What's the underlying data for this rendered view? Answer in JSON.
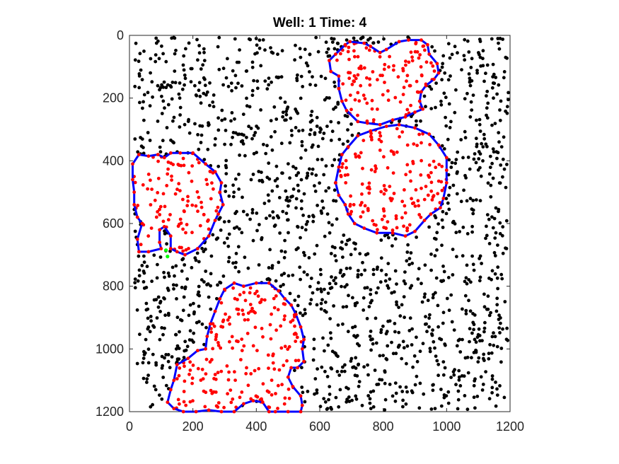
{
  "chart_data": {
    "type": "scatter",
    "title": "Well: 1 Time: 4",
    "xlabel": "",
    "ylabel": "",
    "xlim": [
      0,
      1200
    ],
    "ylim": [
      0,
      1200
    ],
    "y_reversed": true,
    "xticks": [
      0,
      200,
      400,
      600,
      800,
      1000,
      1200
    ],
    "yticks": [
      0,
      200,
      400,
      600,
      800,
      1000,
      1200
    ],
    "xtick_labels": [
      "0",
      "200",
      "400",
      "600",
      "800",
      "1000",
      "1200"
    ],
    "ytick_labels": [
      "0",
      "200",
      "400",
      "600",
      "800",
      "1000",
      "1200"
    ],
    "grid": false,
    "colors": {
      "background_cells": "#000000",
      "colony_cells": "#ff0000",
      "boundary": "#0000ff",
      "vertex": "#ff0000",
      "highlight": "#00ff00",
      "axes": "#262626"
    },
    "background_density": 1500,
    "colonies": [
      {
        "boundary": [
          [
            695,
            20
          ],
          [
            740,
            25
          ],
          [
            760,
            35
          ],
          [
            790,
            55
          ],
          [
            810,
            45
          ],
          [
            850,
            20
          ],
          [
            880,
            15
          ],
          [
            920,
            15
          ],
          [
            940,
            30
          ],
          [
            945,
            60
          ],
          [
            970,
            90
          ],
          [
            975,
            120
          ],
          [
            960,
            140
          ],
          [
            935,
            160
          ],
          [
            920,
            180
          ],
          [
            915,
            210
          ],
          [
            925,
            235
          ],
          [
            900,
            245
          ],
          [
            870,
            260
          ],
          [
            830,
            270
          ],
          [
            790,
            285
          ],
          [
            750,
            280
          ],
          [
            720,
            275
          ],
          [
            685,
            240
          ],
          [
            670,
            210
          ],
          [
            660,
            170
          ],
          [
            660,
            130
          ],
          [
            635,
            115
          ],
          [
            630,
            80
          ],
          [
            650,
            60
          ],
          [
            680,
            30
          ]
        ],
        "fill_count": 110
      },
      {
        "boundary": [
          [
            760,
            305
          ],
          [
            810,
            290
          ],
          [
            850,
            285
          ],
          [
            900,
            295
          ],
          [
            945,
            315
          ],
          [
            975,
            350
          ],
          [
            1000,
            390
          ],
          [
            1000,
            430
          ],
          [
            1000,
            470
          ],
          [
            990,
            520
          ],
          [
            980,
            550
          ],
          [
            950,
            570
          ],
          [
            930,
            590
          ],
          [
            900,
            625
          ],
          [
            870,
            640
          ],
          [
            830,
            630
          ],
          [
            780,
            630
          ],
          [
            740,
            615
          ],
          [
            710,
            600
          ],
          [
            690,
            570
          ],
          [
            680,
            540
          ],
          [
            660,
            510
          ],
          [
            650,
            470
          ],
          [
            660,
            420
          ],
          [
            670,
            380
          ],
          [
            690,
            355
          ],
          [
            720,
            320
          ]
        ],
        "fill_count": 150
      },
      {
        "boundary": [
          [
            10,
            410
          ],
          [
            30,
            380
          ],
          [
            60,
            385
          ],
          [
            90,
            380
          ],
          [
            110,
            390
          ],
          [
            130,
            375
          ],
          [
            160,
            375
          ],
          [
            200,
            375
          ],
          [
            240,
            410
          ],
          [
            270,
            435
          ],
          [
            290,
            470
          ],
          [
            285,
            500
          ],
          [
            295,
            540
          ],
          [
            280,
            570
          ],
          [
            270,
            590
          ],
          [
            250,
            640
          ],
          [
            215,
            680
          ],
          [
            175,
            700
          ],
          [
            150,
            690
          ],
          [
            130,
            680
          ],
          [
            130,
            640
          ],
          [
            110,
            610
          ],
          [
            95,
            620
          ],
          [
            95,
            660
          ],
          [
            100,
            680
          ],
          [
            60,
            690
          ],
          [
            30,
            690
          ],
          [
            25,
            650
          ],
          [
            40,
            600
          ],
          [
            25,
            580
          ],
          [
            15,
            540
          ],
          [
            15,
            500
          ],
          [
            10,
            460
          ]
        ],
        "fill_count": 100
      },
      {
        "boundary": [
          [
            300,
            810
          ],
          [
            330,
            790
          ],
          [
            360,
            800
          ],
          [
            400,
            790
          ],
          [
            440,
            790
          ],
          [
            470,
            815
          ],
          [
            490,
            840
          ],
          [
            510,
            860
          ],
          [
            525,
            890
          ],
          [
            540,
            930
          ],
          [
            550,
            970
          ],
          [
            545,
            1000
          ],
          [
            550,
            1040
          ],
          [
            530,
            1060
          ],
          [
            510,
            1060
          ],
          [
            500,
            1090
          ],
          [
            515,
            1120
          ],
          [
            540,
            1150
          ],
          [
            545,
            1180
          ],
          [
            540,
            1200
          ],
          [
            500,
            1200
          ],
          [
            460,
            1200
          ],
          [
            440,
            1200
          ],
          [
            420,
            1170
          ],
          [
            390,
            1165
          ],
          [
            360,
            1175
          ],
          [
            330,
            1200
          ],
          [
            290,
            1200
          ],
          [
            250,
            1195
          ],
          [
            210,
            1200
          ],
          [
            170,
            1200
          ],
          [
            140,
            1190
          ],
          [
            120,
            1170
          ],
          [
            130,
            1130
          ],
          [
            140,
            1100
          ],
          [
            150,
            1050
          ],
          [
            185,
            1030
          ],
          [
            215,
            1005
          ],
          [
            240,
            1000
          ],
          [
            245,
            960
          ],
          [
            255,
            920
          ],
          [
            270,
            880
          ],
          [
            285,
            840
          ]
        ],
        "fill_count": 190
      }
    ],
    "highlight_points": [
      [
        115,
        685
      ],
      [
        120,
        705
      ]
    ]
  }
}
